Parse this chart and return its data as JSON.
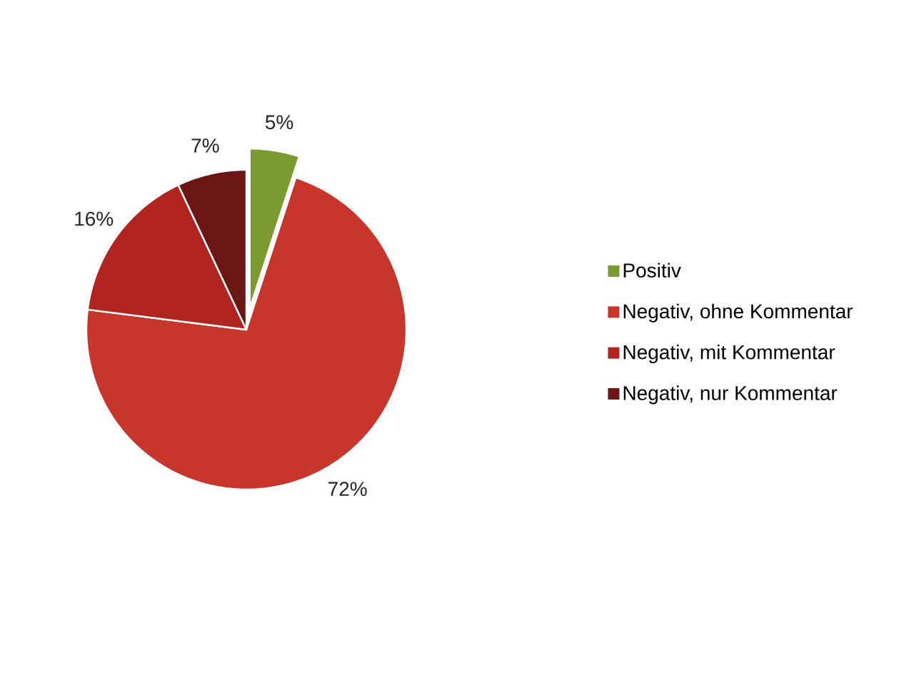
{
  "chart_data": {
    "type": "pie",
    "categories": [
      "Positiv",
      "Negativ, ohne Kommentar",
      "Negativ, mit Kommentar",
      "Negativ, nur Kommentar"
    ],
    "values": [
      5,
      72,
      16,
      7
    ],
    "colors": [
      "#7b9a2f",
      "#c8352a",
      "#b2241f",
      "#6b1515"
    ],
    "value_labels": [
      "5%",
      "72%",
      "16%",
      "7%"
    ],
    "legend": "right"
  }
}
